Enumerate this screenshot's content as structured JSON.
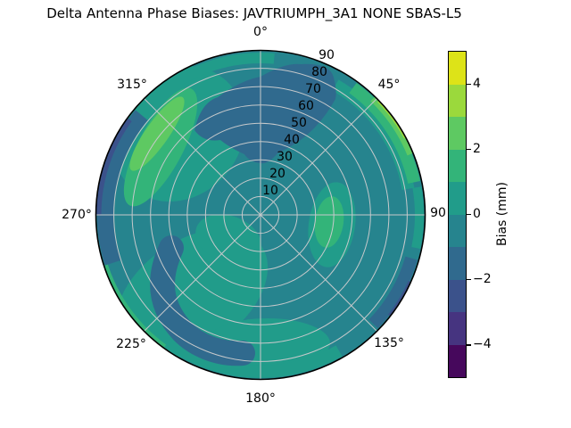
{
  "title": "Delta Antenna Phase Biases: JAVTRIUMPH_3A1  NONE SBAS-L5",
  "polar": {
    "angular_labels": [
      "0°",
      "45°",
      "90",
      "135°",
      "180°",
      "225°",
      "270°",
      "315°"
    ],
    "radial_labels": [
      "10",
      "20",
      "30",
      "40",
      "50",
      "60",
      "70",
      "80",
      "90"
    ]
  },
  "colorbar": {
    "label": "Bias (mm)",
    "tick_labels": [
      "4",
      "2",
      "0",
      "−2",
      "−4"
    ]
  },
  "chart_data": {
    "type": "polar_contour",
    "title": "Delta Antenna Phase Biases: JAVTRIUMPH_3A1  NONE SBAS-L5",
    "colorbar_label": "Bias (mm)",
    "colorbar_ticks": [
      4,
      2,
      0,
      -2,
      -4
    ],
    "contour_levels_mm": [
      -5,
      -4,
      -3,
      -2,
      -1,
      0,
      1,
      2,
      3,
      4,
      5
    ],
    "band_colors": [
      "#46085c",
      "#463480",
      "#3b528b",
      "#306a8e",
      "#26848e",
      "#219c8a",
      "#33b479",
      "#5ec962",
      "#9bd93c",
      "#dde318"
    ],
    "azimuth_ticks_deg": [
      0,
      45,
      90,
      135,
      180,
      225,
      270,
      315
    ],
    "radial_ticks": [
      10,
      20,
      30,
      40,
      50,
      60,
      70,
      80,
      90
    ],
    "radial_range": [
      0,
      90
    ],
    "background_bias_band_mm": [
      -1,
      0
    ],
    "grid_color": "#c6c9cb",
    "features": [
      {
        "name": "north dark region",
        "azimuth_deg": [
          325,
          35
        ],
        "radius": [
          28,
          85
        ],
        "bias_band_mm": [
          -2,
          -1
        ]
      },
      {
        "name": "west rim dark band",
        "azimuth_deg": [
          252,
          310
        ],
        "radius": [
          80,
          90
        ],
        "bias_band_mm": [
          -2,
          -1
        ]
      },
      {
        "name": "west rim sliver",
        "azimuth_deg": [
          270,
          306
        ],
        "radius": [
          86,
          90
        ],
        "bias_band_mm": [
          -3,
          -2
        ]
      },
      {
        "name": "southwest dark arc",
        "azimuth_deg": [
          196,
          250
        ],
        "radius": [
          52,
          82
        ],
        "bias_band_mm": [
          -2,
          -1
        ]
      },
      {
        "name": "southeast rim dark band",
        "azimuth_deg": [
          106,
          134
        ],
        "radius": [
          82,
          90
        ],
        "bias_band_mm": [
          -2,
          -1
        ]
      },
      {
        "name": "southeast rim sliver",
        "azimuth_deg": [
          114,
          128
        ],
        "radius": [
          87,
          90
        ],
        "bias_band_mm": [
          -3,
          -2
        ]
      },
      {
        "name": "northwest green blob",
        "azimuth_deg": [
          300,
          335
        ],
        "radius": [
          35,
          88
        ],
        "bias_band_mm": [
          1,
          2
        ],
        "core_bias_band_mm": [
          2,
          3
        ]
      },
      {
        "name": "northeast rim green band",
        "azimuth_deg": [
          35,
          78
        ],
        "radius": [
          78,
          90
        ],
        "bias_band_mm": [
          1,
          2
        ],
        "peak_bias_band_mm": [
          3,
          4
        ]
      },
      {
        "name": "east green blob",
        "azimuth_deg": [
          88,
          112
        ],
        "radius": [
          38,
          72
        ],
        "bias_band_mm": [
          1,
          2
        ]
      },
      {
        "name": "southwest rim green sliver",
        "azimuth_deg": [
          216,
          252
        ],
        "radius": [
          87,
          90
        ],
        "bias_band_mm": [
          1,
          2
        ]
      },
      {
        "name": "greener-teal patches",
        "bias_band_mm": [
          0,
          1
        ],
        "locations": "south of center, east of center, south rim, north rim west of 0, around northwest blob"
      }
    ]
  }
}
